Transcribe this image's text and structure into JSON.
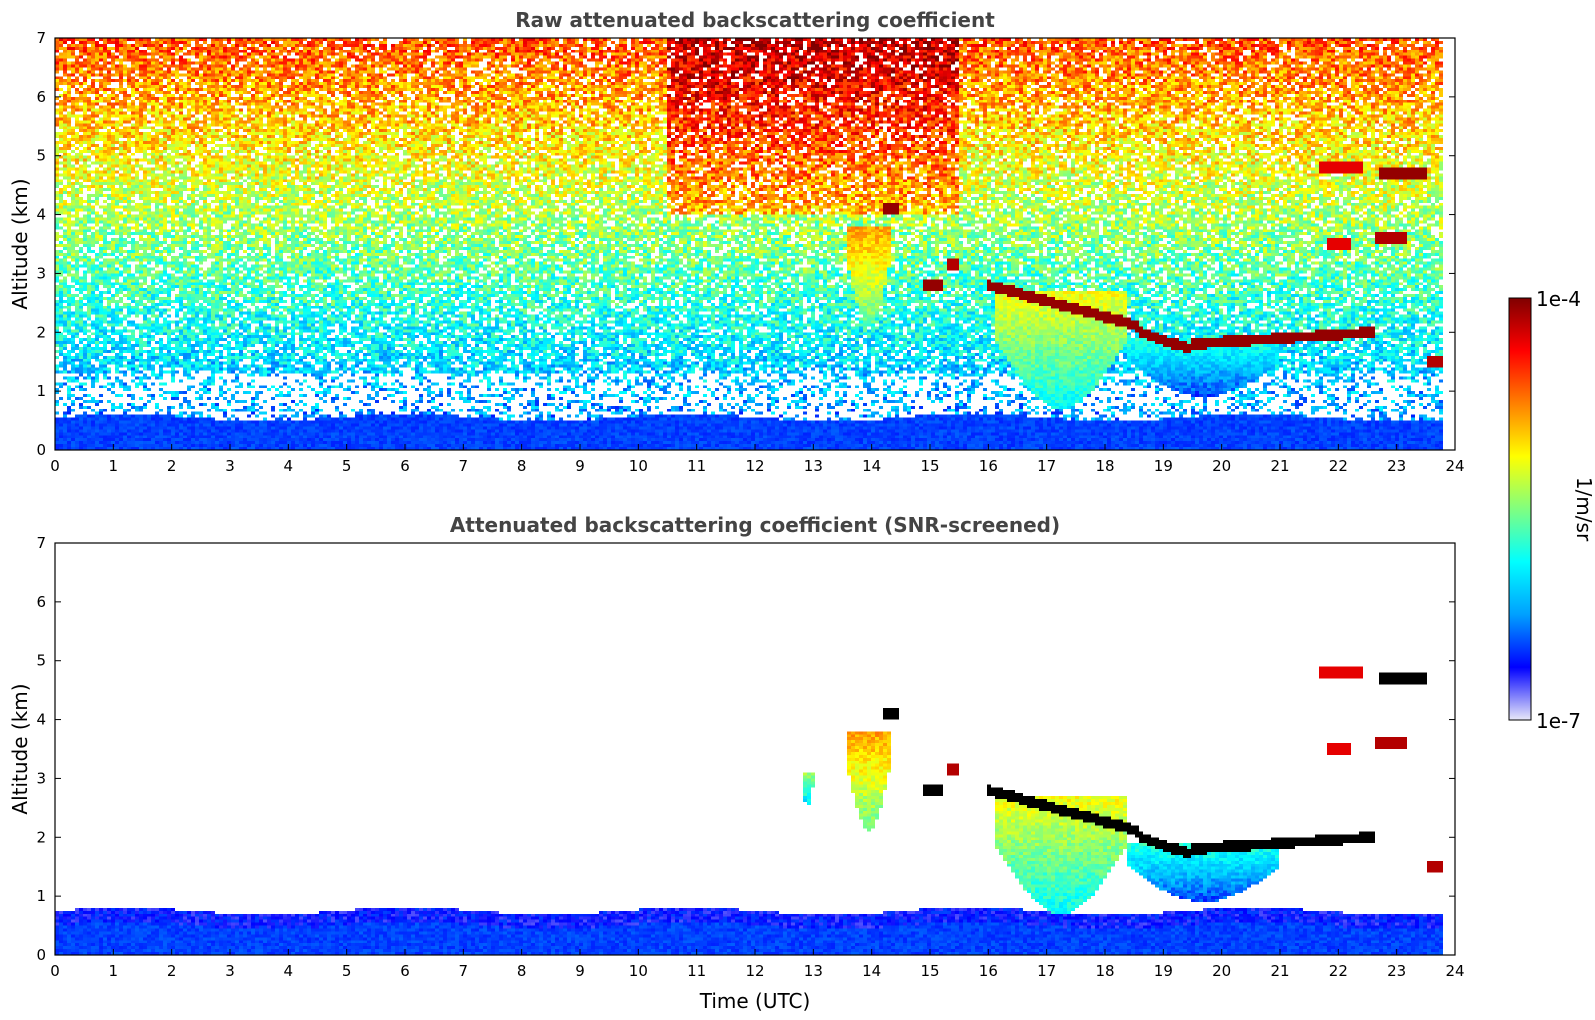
{
  "chart_data": [
    {
      "type": "heatmap",
      "title": "Raw attenuated backscattering coefficient",
      "xlabel": "",
      "ylabel": "Altitude (km)",
      "xlim": [
        0,
        24
      ],
      "ylim": [
        0,
        7
      ],
      "xticks": [
        "0",
        "1",
        "2",
        "3",
        "4",
        "5",
        "6",
        "7",
        "8",
        "9",
        "10",
        "11",
        "12",
        "13",
        "14",
        "15",
        "16",
        "17",
        "18",
        "19",
        "20",
        "21",
        "22",
        "23",
        "24"
      ],
      "yticks": [
        "0",
        "1",
        "2",
        "3",
        "4",
        "5",
        "6",
        "7"
      ],
      "features": [
        {
          "kind": "cloud_layer",
          "t_start": 16.0,
          "t_end": 18.6,
          "alt_start_km": 2.8,
          "alt_end_km": 2.1,
          "level": 0.98
        },
        {
          "kind": "cloud_layer",
          "t_start": 18.6,
          "t_end": 19.5,
          "alt_start_km": 2.0,
          "alt_end_km": 1.7,
          "level": 0.98
        },
        {
          "kind": "cloud_layer",
          "t_start": 19.5,
          "t_end": 22.6,
          "alt_start_km": 1.8,
          "alt_end_km": 2.0,
          "level": 0.98
        },
        {
          "kind": "cloud_patch",
          "t_start": 22.7,
          "t_end": 23.5,
          "alt_km": 4.7,
          "level": 0.98
        },
        {
          "kind": "cloud_patch",
          "t_start": 21.7,
          "t_end": 22.4,
          "alt_km": 4.8,
          "level": 0.9
        },
        {
          "kind": "cloud_patch",
          "t_start": 22.6,
          "t_end": 23.2,
          "alt_km": 3.6,
          "level": 0.95
        },
        {
          "kind": "cloud_patch",
          "t_start": 21.8,
          "t_end": 22.2,
          "alt_km": 3.5,
          "level": 0.9
        },
        {
          "kind": "cloud_patch",
          "t_start": 23.5,
          "t_end": 23.8,
          "alt_km": 1.5,
          "level": 0.95
        },
        {
          "kind": "cloud_patch",
          "t_start": 14.2,
          "t_end": 14.5,
          "alt_km": 4.1,
          "level": 0.98
        },
        {
          "kind": "cloud_patch",
          "t_start": 14.9,
          "t_end": 15.2,
          "alt_km": 2.8,
          "level": 0.98
        },
        {
          "kind": "cloud_patch",
          "t_start": 15.3,
          "t_end": 15.5,
          "alt_km": 3.15,
          "level": 0.95
        },
        {
          "kind": "virga",
          "t_start": 13.6,
          "t_end": 14.3,
          "alt_bottom_km": 2.1,
          "alt_top_km": 3.8,
          "level": 0.72
        },
        {
          "kind": "virga",
          "t_start": 16.1,
          "t_end": 18.4,
          "alt_bottom_km": 0.7,
          "alt_top_km": 2.7,
          "level": 0.62
        },
        {
          "kind": "virga",
          "t_start": 18.4,
          "t_end": 21.0,
          "alt_bottom_km": 0.9,
          "alt_top_km": 1.9,
          "level": 0.42
        },
        {
          "kind": "virga",
          "t_start": 12.8,
          "t_end": 13.0,
          "alt_bottom_km": 2.5,
          "alt_top_km": 3.1,
          "level": 0.55
        }
      ],
      "boundary_layer_top_km": 0.55,
      "noise_increase_with_altitude": true,
      "data_end_time": 23.8
    },
    {
      "type": "heatmap",
      "title": "Attenuated backscattering coefficient (SNR-screened)",
      "xlabel": "Time (UTC)",
      "ylabel": "Altitude (km)",
      "xlim": [
        0,
        24
      ],
      "ylim": [
        0,
        7
      ],
      "xticks": [
        "0",
        "1",
        "2",
        "3",
        "4",
        "5",
        "6",
        "7",
        "8",
        "9",
        "10",
        "11",
        "12",
        "13",
        "14",
        "15",
        "16",
        "17",
        "18",
        "19",
        "20",
        "21",
        "22",
        "23",
        "24"
      ],
      "yticks": [
        "0",
        "1",
        "2",
        "3",
        "4",
        "5",
        "6",
        "7"
      ],
      "screened": true,
      "saturated_color": "#000000",
      "boundary_layer_top_km": 0.75,
      "data_end_time": 23.8
    }
  ],
  "colorbar": {
    "label": "1/m/sr",
    "min_label": "1e-7",
    "max_label": "1e-4",
    "scale": "log",
    "colormap": "jet",
    "stops": [
      "#e8e8f8",
      "#0000ff",
      "#00a0ff",
      "#00ffff",
      "#80ff80",
      "#ffff00",
      "#ff8000",
      "#ff0000",
      "#800000"
    ]
  }
}
